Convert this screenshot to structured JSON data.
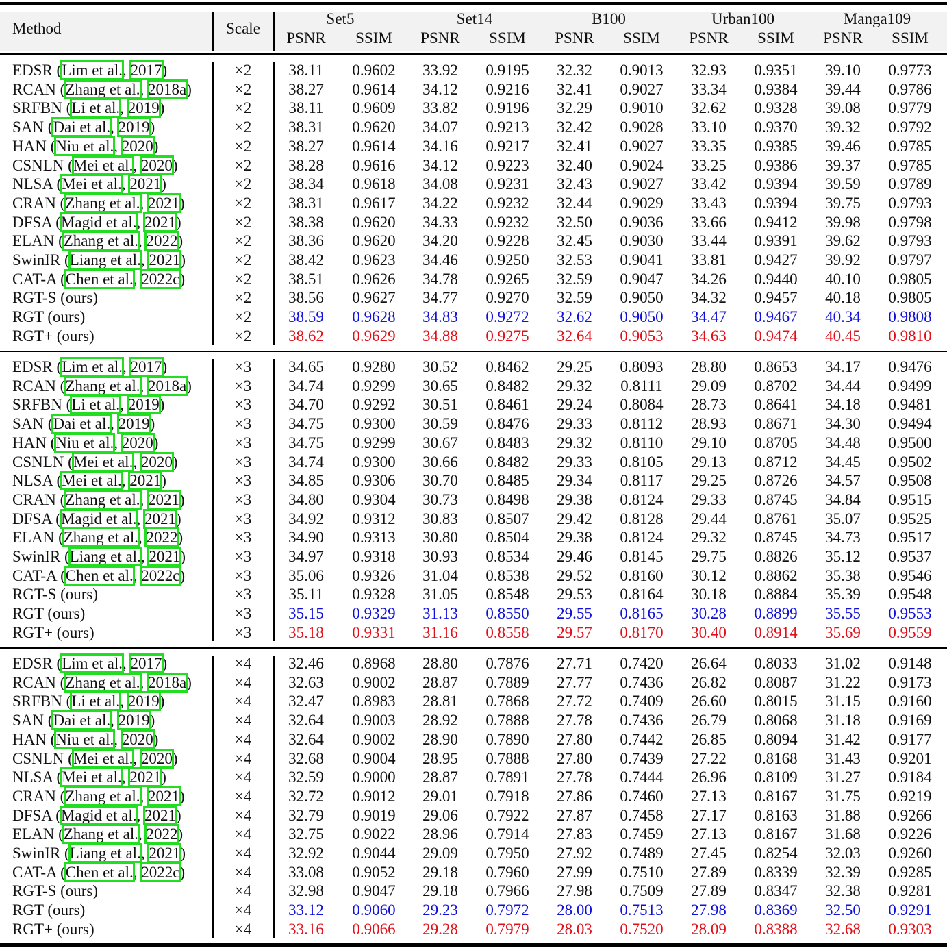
{
  "table": {
    "header": {
      "method": "Method",
      "scale": "Scale",
      "datasets": [
        "Set5",
        "Set14",
        "B100",
        "Urban100",
        "Manga109"
      ],
      "metrics": [
        "PSNR",
        "SSIM"
      ]
    },
    "colors": {
      "second_best": "#1010d8",
      "best": "#e0101a",
      "citation_box": "#22dd22",
      "header_bg": "#f2f2f2"
    },
    "sections": [
      {
        "scale": "×2",
        "rows": [
          {
            "name": "EDSR",
            "author": "Lim et al.",
            "year": "2017",
            "values": [
              "38.11",
              "0.9602",
              "33.92",
              "0.9195",
              "32.32",
              "0.9013",
              "32.93",
              "0.9351",
              "39.10",
              "0.9773"
            ],
            "style": ""
          },
          {
            "name": "RCAN",
            "author": "Zhang et al.",
            "year": "2018a",
            "values": [
              "38.27",
              "0.9614",
              "34.12",
              "0.9216",
              "32.41",
              "0.9027",
              "33.34",
              "0.9384",
              "39.44",
              "0.9786"
            ],
            "style": ""
          },
          {
            "name": "SRFBN",
            "author": "Li et al.",
            "year": "2019",
            "values": [
              "38.11",
              "0.9609",
              "33.82",
              "0.9196",
              "32.29",
              "0.9010",
              "32.62",
              "0.9328",
              "39.08",
              "0.9779"
            ],
            "style": ""
          },
          {
            "name": "SAN",
            "author": "Dai et al.",
            "year": "2019",
            "values": [
              "38.31",
              "0.9620",
              "34.07",
              "0.9213",
              "32.42",
              "0.9028",
              "33.10",
              "0.9370",
              "39.32",
              "0.9792"
            ],
            "style": ""
          },
          {
            "name": "HAN",
            "author": "Niu et al.",
            "year": "2020",
            "values": [
              "38.27",
              "0.9614",
              "34.16",
              "0.9217",
              "32.41",
              "0.9027",
              "33.35",
              "0.9385",
              "39.46",
              "0.9785"
            ],
            "style": ""
          },
          {
            "name": "CSNLN",
            "author": "Mei et al.",
            "year": "2020",
            "values": [
              "38.28",
              "0.9616",
              "34.12",
              "0.9223",
              "32.40",
              "0.9024",
              "33.25",
              "0.9386",
              "39.37",
              "0.9785"
            ],
            "style": ""
          },
          {
            "name": "NLSA",
            "author": "Mei et al.",
            "year": "2021",
            "values": [
              "38.34",
              "0.9618",
              "34.08",
              "0.9231",
              "32.43",
              "0.9027",
              "33.42",
              "0.9394",
              "39.59",
              "0.9789"
            ],
            "style": ""
          },
          {
            "name": "CRAN",
            "author": "Zhang et al.",
            "year": "2021",
            "values": [
              "38.31",
              "0.9617",
              "34.22",
              "0.9232",
              "32.44",
              "0.9029",
              "33.43",
              "0.9394",
              "39.75",
              "0.9793"
            ],
            "style": ""
          },
          {
            "name": "DFSA",
            "author": "Magid et al.",
            "year": "2021",
            "values": [
              "38.38",
              "0.9620",
              "34.33",
              "0.9232",
              "32.50",
              "0.9036",
              "33.66",
              "0.9412",
              "39.98",
              "0.9798"
            ],
            "style": ""
          },
          {
            "name": "ELAN",
            "author": "Zhang et al.",
            "year": "2022",
            "values": [
              "38.36",
              "0.9620",
              "34.20",
              "0.9228",
              "32.45",
              "0.9030",
              "33.44",
              "0.9391",
              "39.62",
              "0.9793"
            ],
            "style": ""
          },
          {
            "name": "SwinIR",
            "author": "Liang et al.",
            "year": "2021",
            "values": [
              "38.42",
              "0.9623",
              "34.46",
              "0.9250",
              "32.53",
              "0.9041",
              "33.81",
              "0.9427",
              "39.92",
              "0.9797"
            ],
            "style": ""
          },
          {
            "name": "CAT-A",
            "author": "Chen et al.",
            "year": "2022c",
            "values": [
              "38.51",
              "0.9626",
              "34.78",
              "0.9265",
              "32.59",
              "0.9047",
              "34.26",
              "0.9440",
              "40.10",
              "0.9805"
            ],
            "style": ""
          },
          {
            "name": "RGT-S (ours)",
            "author": "",
            "year": "",
            "values": [
              "38.56",
              "0.9627",
              "34.77",
              "0.9270",
              "32.59",
              "0.9050",
              "34.32",
              "0.9457",
              "40.18",
              "0.9805"
            ],
            "style": ""
          },
          {
            "name": "RGT (ours)",
            "author": "",
            "year": "",
            "values": [
              "38.59",
              "0.9628",
              "34.83",
              "0.9272",
              "32.62",
              "0.9050",
              "34.47",
              "0.9467",
              "40.34",
              "0.9808"
            ],
            "style": "second"
          },
          {
            "name": "RGT+ (ours)",
            "author": "",
            "year": "",
            "values": [
              "38.62",
              "0.9629",
              "34.88",
              "0.9275",
              "32.64",
              "0.9053",
              "34.63",
              "0.9474",
              "40.45",
              "0.9810"
            ],
            "style": "best"
          }
        ]
      },
      {
        "scale": "×3",
        "rows": [
          {
            "name": "EDSR",
            "author": "Lim et al.",
            "year": "2017",
            "values": [
              "34.65",
              "0.9280",
              "30.52",
              "0.8462",
              "29.25",
              "0.8093",
              "28.80",
              "0.8653",
              "34.17",
              "0.9476"
            ],
            "style": ""
          },
          {
            "name": "RCAN",
            "author": "Zhang et al.",
            "year": "2018a",
            "values": [
              "34.74",
              "0.9299",
              "30.65",
              "0.8482",
              "29.32",
              "0.8111",
              "29.09",
              "0.8702",
              "34.44",
              "0.9499"
            ],
            "style": ""
          },
          {
            "name": "SRFBN",
            "author": "Li et al.",
            "year": "2019",
            "values": [
              "34.70",
              "0.9292",
              "30.51",
              "0.8461",
              "29.24",
              "0.8084",
              "28.73",
              "0.8641",
              "34.18",
              "0.9481"
            ],
            "style": ""
          },
          {
            "name": "SAN",
            "author": "Dai et al.",
            "year": "2019",
            "values": [
              "34.75",
              "0.9300",
              "30.59",
              "0.8476",
              "29.33",
              "0.8112",
              "28.93",
              "0.8671",
              "34.30",
              "0.9494"
            ],
            "style": ""
          },
          {
            "name": "HAN",
            "author": "Niu et al.",
            "year": "2020",
            "values": [
              "34.75",
              "0.9299",
              "30.67",
              "0.8483",
              "29.32",
              "0.8110",
              "29.10",
              "0.8705",
              "34.48",
              "0.9500"
            ],
            "style": ""
          },
          {
            "name": "CSNLN",
            "author": "Mei et al.",
            "year": "2020",
            "values": [
              "34.74",
              "0.9300",
              "30.66",
              "0.8482",
              "29.33",
              "0.8105",
              "29.13",
              "0.8712",
              "34.45",
              "0.9502"
            ],
            "style": ""
          },
          {
            "name": "NLSA",
            "author": "Mei et al.",
            "year": "2021",
            "values": [
              "34.85",
              "0.9306",
              "30.70",
              "0.8485",
              "29.34",
              "0.8117",
              "29.25",
              "0.8726",
              "34.57",
              "0.9508"
            ],
            "style": ""
          },
          {
            "name": "CRAN",
            "author": "Zhang et al.",
            "year": "2021",
            "values": [
              "34.80",
              "0.9304",
              "30.73",
              "0.8498",
              "29.38",
              "0.8124",
              "29.33",
              "0.8745",
              "34.84",
              "0.9515"
            ],
            "style": ""
          },
          {
            "name": "DFSA",
            "author": "Magid et al.",
            "year": "2021",
            "values": [
              "34.92",
              "0.9312",
              "30.83",
              "0.8507",
              "29.42",
              "0.8128",
              "29.44",
              "0.8761",
              "35.07",
              "0.9525"
            ],
            "style": ""
          },
          {
            "name": "ELAN",
            "author": "Zhang et al.",
            "year": "2022",
            "values": [
              "34.90",
              "0.9313",
              "30.80",
              "0.8504",
              "29.38",
              "0.8124",
              "29.32",
              "0.8745",
              "34.73",
              "0.9517"
            ],
            "style": ""
          },
          {
            "name": "SwinIR",
            "author": "Liang et al.",
            "year": "2021",
            "values": [
              "34.97",
              "0.9318",
              "30.93",
              "0.8534",
              "29.46",
              "0.8145",
              "29.75",
              "0.8826",
              "35.12",
              "0.9537"
            ],
            "style": ""
          },
          {
            "name": "CAT-A",
            "author": "Chen et al.",
            "year": "2022c",
            "values": [
              "35.06",
              "0.9326",
              "31.04",
              "0.8538",
              "29.52",
              "0.8160",
              "30.12",
              "0.8862",
              "35.38",
              "0.9546"
            ],
            "style": ""
          },
          {
            "name": "RGT-S (ours)",
            "author": "",
            "year": "",
            "values": [
              "35.11",
              "0.9328",
              "31.05",
              "0.8548",
              "29.53",
              "0.8164",
              "30.18",
              "0.8884",
              "35.39",
              "0.9548"
            ],
            "style": ""
          },
          {
            "name": "RGT (ours)",
            "author": "",
            "year": "",
            "values": [
              "35.15",
              "0.9329",
              "31.13",
              "0.8550",
              "29.55",
              "0.8165",
              "30.28",
              "0.8899",
              "35.55",
              "0.9553"
            ],
            "style": "second"
          },
          {
            "name": "RGT+ (ours)",
            "author": "",
            "year": "",
            "values": [
              "35.18",
              "0.9331",
              "31.16",
              "0.8558",
              "29.57",
              "0.8170",
              "30.40",
              "0.8914",
              "35.69",
              "0.9559"
            ],
            "style": "best"
          }
        ]
      },
      {
        "scale": "×4",
        "rows": [
          {
            "name": "EDSR",
            "author": "Lim et al.",
            "year": "2017",
            "values": [
              "32.46",
              "0.8968",
              "28.80",
              "0.7876",
              "27.71",
              "0.7420",
              "26.64",
              "0.8033",
              "31.02",
              "0.9148"
            ],
            "style": ""
          },
          {
            "name": "RCAN",
            "author": "Zhang et al.",
            "year": "2018a",
            "values": [
              "32.63",
              "0.9002",
              "28.87",
              "0.7889",
              "27.77",
              "0.7436",
              "26.82",
              "0.8087",
              "31.22",
              "0.9173"
            ],
            "style": ""
          },
          {
            "name": "SRFBN",
            "author": "Li et al.",
            "year": "2019",
            "values": [
              "32.47",
              "0.8983",
              "28.81",
              "0.7868",
              "27.72",
              "0.7409",
              "26.60",
              "0.8015",
              "31.15",
              "0.9160"
            ],
            "style": ""
          },
          {
            "name": "SAN",
            "author": "Dai et al.",
            "year": "2019",
            "values": [
              "32.64",
              "0.9003",
              "28.92",
              "0.7888",
              "27.78",
              "0.7436",
              "26.79",
              "0.8068",
              "31.18",
              "0.9169"
            ],
            "style": ""
          },
          {
            "name": "HAN",
            "author": "Niu et al.",
            "year": "2020",
            "values": [
              "32.64",
              "0.9002",
              "28.90",
              "0.7890",
              "27.80",
              "0.7442",
              "26.85",
              "0.8094",
              "31.42",
              "0.9177"
            ],
            "style": ""
          },
          {
            "name": "CSNLN",
            "author": "Mei et al.",
            "year": "2020",
            "values": [
              "32.68",
              "0.9004",
              "28.95",
              "0.7888",
              "27.80",
              "0.7439",
              "27.22",
              "0.8168",
              "31.43",
              "0.9201"
            ],
            "style": ""
          },
          {
            "name": "NLSA",
            "author": "Mei et al.",
            "year": "2021",
            "values": [
              "32.59",
              "0.9000",
              "28.87",
              "0.7891",
              "27.78",
              "0.7444",
              "26.96",
              "0.8109",
              "31.27",
              "0.9184"
            ],
            "style": ""
          },
          {
            "name": "CRAN",
            "author": "Zhang et al.",
            "year": "2021",
            "values": [
              "32.72",
              "0.9012",
              "29.01",
              "0.7918",
              "27.86",
              "0.7460",
              "27.13",
              "0.8167",
              "31.75",
              "0.9219"
            ],
            "style": ""
          },
          {
            "name": "DFSA",
            "author": "Magid et al.",
            "year": "2021",
            "values": [
              "32.79",
              "0.9019",
              "29.06",
              "0.7922",
              "27.87",
              "0.7458",
              "27.17",
              "0.8163",
              "31.88",
              "0.9266"
            ],
            "style": ""
          },
          {
            "name": "ELAN",
            "author": "Zhang et al.",
            "year": "2022",
            "values": [
              "32.75",
              "0.9022",
              "28.96",
              "0.7914",
              "27.83",
              "0.7459",
              "27.13",
              "0.8167",
              "31.68",
              "0.9226"
            ],
            "style": ""
          },
          {
            "name": "SwinIR",
            "author": "Liang et al.",
            "year": "2021",
            "values": [
              "32.92",
              "0.9044",
              "29.09",
              "0.7950",
              "27.92",
              "0.7489",
              "27.45",
              "0.8254",
              "32.03",
              "0.9260"
            ],
            "style": ""
          },
          {
            "name": "CAT-A",
            "author": "Chen et al.",
            "year": "2022c",
            "values": [
              "33.08",
              "0.9052",
              "29.18",
              "0.7960",
              "27.99",
              "0.7510",
              "27.89",
              "0.8339",
              "32.39",
              "0.9285"
            ],
            "style": ""
          },
          {
            "name": "RGT-S (ours)",
            "author": "",
            "year": "",
            "values": [
              "32.98",
              "0.9047",
              "29.18",
              "0.7966",
              "27.98",
              "0.7509",
              "27.89",
              "0.8347",
              "32.38",
              "0.9281"
            ],
            "style": ""
          },
          {
            "name": "RGT (ours)",
            "author": "",
            "year": "",
            "values": [
              "33.12",
              "0.9060",
              "29.23",
              "0.7972",
              "28.00",
              "0.7513",
              "27.98",
              "0.8369",
              "32.50",
              "0.9291"
            ],
            "style": "second"
          },
          {
            "name": "RGT+ (ours)",
            "author": "",
            "year": "",
            "values": [
              "33.16",
              "0.9066",
              "29.28",
              "0.7979",
              "28.03",
              "0.7520",
              "28.09",
              "0.8388",
              "32.68",
              "0.9303"
            ],
            "style": "best"
          }
        ]
      }
    ]
  }
}
